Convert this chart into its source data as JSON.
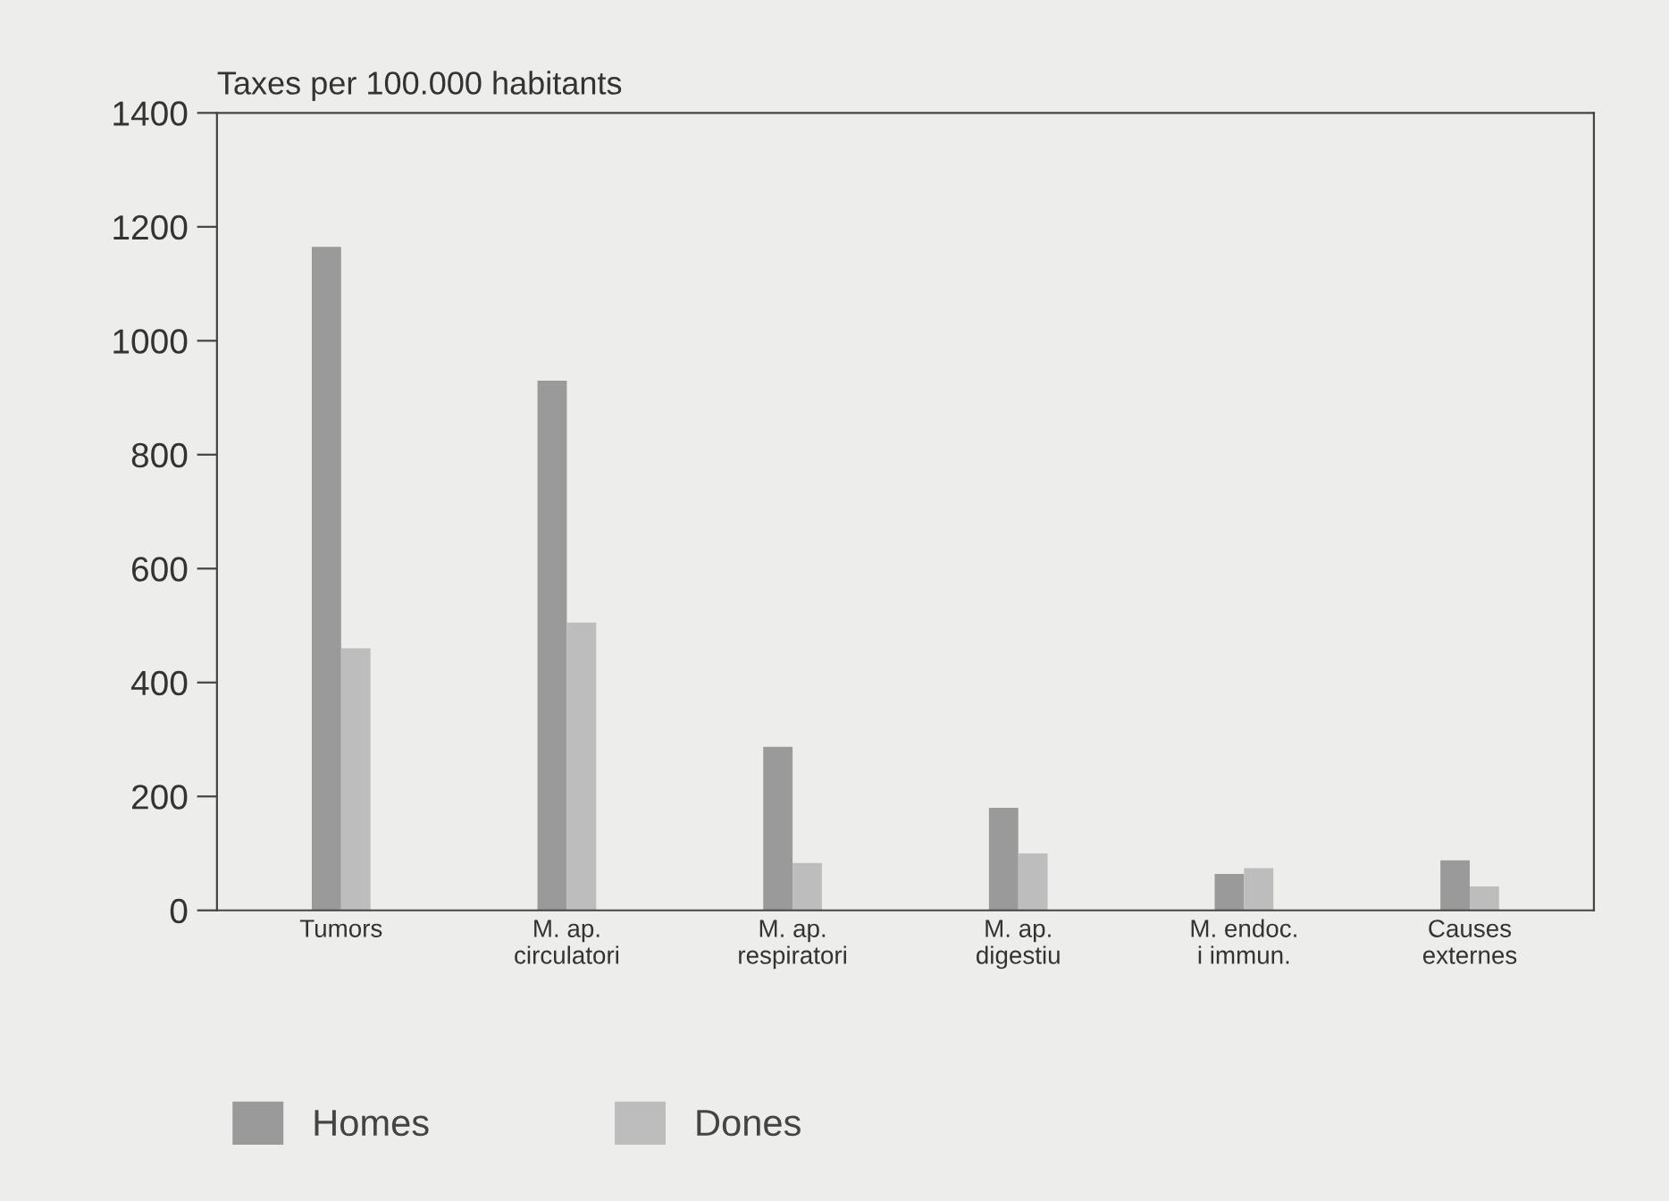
{
  "chart_data": {
    "type": "bar",
    "ylabel": "Taxes per 100.000 habitants",
    "categories": [
      "Tumors",
      "M. ap.\ncirculatori",
      "M. ap.\nrespiratori",
      "M. ap.\ndigestiu",
      "M. endoc.\ni immun.",
      "Causes\nexternes"
    ],
    "series": [
      {
        "name": "Homes",
        "color": "#9a9a9a",
        "values": [
          1165,
          930,
          287,
          180,
          64,
          88
        ]
      },
      {
        "name": "Dones",
        "color": "#bdbdbd",
        "values": [
          460,
          505,
          83,
          100,
          74,
          42
        ]
      }
    ],
    "ylim": [
      0,
      1400
    ],
    "yticks": [
      0,
      200,
      400,
      600,
      800,
      1000,
      1200,
      1400
    ],
    "grid": false,
    "legend": "bottom left"
  }
}
